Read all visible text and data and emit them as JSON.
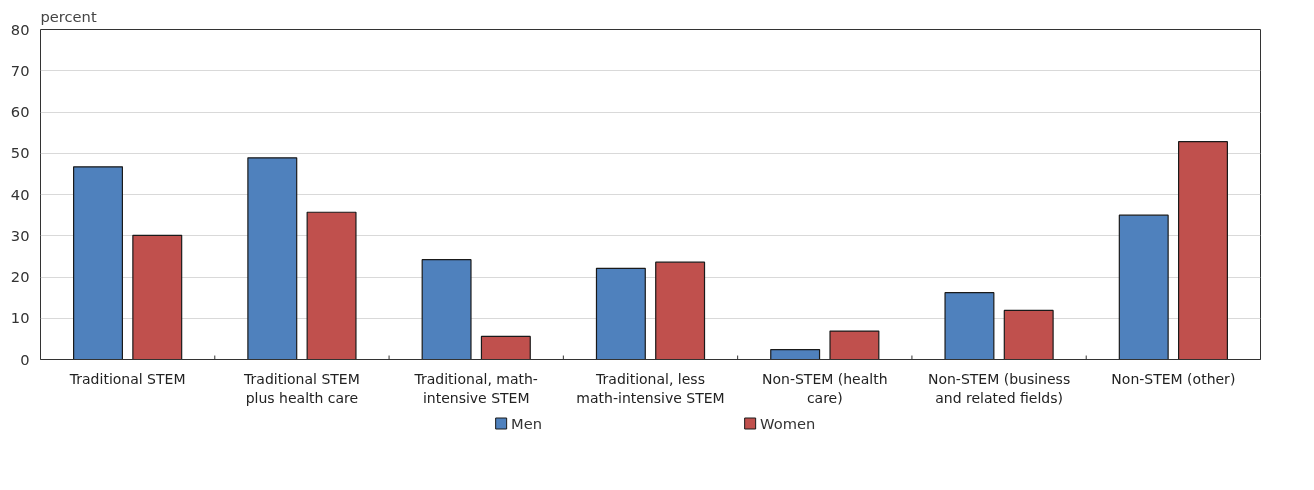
{
  "chart_data": {
    "type": "bar",
    "ylabel": "percent",
    "categories": [
      "Traditional STEM",
      "Traditional STEM plus health care",
      "Traditional, math-intensive STEM",
      "Traditional, less math-intensive STEM",
      "Non-STEM (health care)",
      "Non-STEM (business and related fields)",
      "Non-STEM (other)"
    ],
    "series": [
      {
        "name": "Men",
        "color": "#4f81bd",
        "values": [
          46.7,
          48.9,
          24.2,
          22.1,
          2.4,
          16.2,
          35.0
        ]
      },
      {
        "name": "Women",
        "color": "#c0504d",
        "values": [
          30.1,
          35.7,
          5.6,
          23.6,
          6.9,
          11.9,
          52.8
        ]
      }
    ],
    "ylim": [
      0,
      80
    ],
    "yticks": [
      0,
      10,
      20,
      30,
      40,
      50,
      60,
      70,
      80
    ],
    "grid": "y",
    "legend": "bottom"
  }
}
